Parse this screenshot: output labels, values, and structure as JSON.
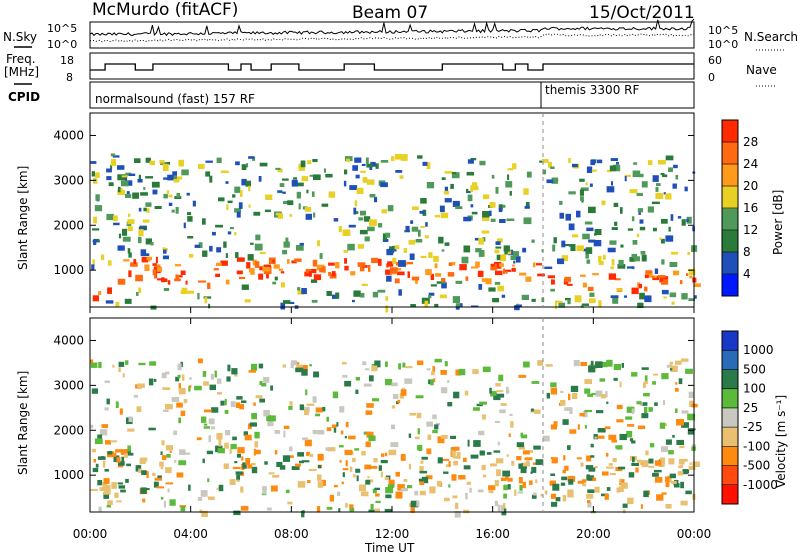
{
  "header": {
    "station": "McMurdo (fitACF)",
    "beam": "Beam 07",
    "date": "15/Oct/2011"
  },
  "noise_panel": {
    "left_label": "N.Sky",
    "right_label": "N.Search",
    "left_ticks": [
      "10^5",
      "10^0"
    ],
    "right_ticks": [
      "10^5",
      "10^0"
    ]
  },
  "freq_panel": {
    "left_label_line1": "Freq.",
    "left_label_line2": "[MHz]",
    "left_ticks": [
      "18",
      "8"
    ],
    "right_label": "Nave",
    "right_ticks": [
      "60",
      "0"
    ]
  },
  "cpid_panel": {
    "label": "CPID",
    "modes": [
      {
        "text": "normalsound (fast) 157 RF",
        "start_hour": 0
      },
      {
        "text": "themis 3300 RF",
        "start_hour": 18.0
      }
    ]
  },
  "time_axis": {
    "label": "Time UT",
    "ticks": [
      "00:00",
      "04:00",
      "08:00",
      "12:00",
      "16:00",
      "20:00",
      "00:00"
    ]
  },
  "power_panel": {
    "ylabel": "Slant Range [km]",
    "yticks": [
      "1000",
      "2000",
      "3000",
      "4000"
    ],
    "colorbar_label": "Power [dB]",
    "colorbar_ticks": [
      "4",
      "8",
      "12",
      "16",
      "20",
      "24",
      "28"
    ],
    "colors": [
      "#0018ff",
      "#1f4fb8",
      "#2a7a3a",
      "#4f9a5a",
      "#e8d024",
      "#ff9a1a",
      "#ff6a10",
      "#ff2a00"
    ]
  },
  "velocity_panel": {
    "ylabel": "Slant Range [km]",
    "yticks": [
      "1000",
      "2000",
      "3000",
      "4000"
    ],
    "colorbar_label": "Velocity [m s⁻¹]",
    "colorbar_ticks": [
      "1000",
      "500",
      "100",
      "25",
      "-25",
      "-100",
      "-500",
      "-1000"
    ],
    "colors": [
      "#1a38c8",
      "#2a6ab8",
      "#2a7a4a",
      "#5cba3a",
      "#c8c8c0",
      "#e8c070",
      "#ff8a10",
      "#ff4a10",
      "#ff1000"
    ]
  },
  "chart_data": {
    "type": "heatmap",
    "x_range_hours": [
      0,
      24
    ],
    "y_range_km": [
      180,
      4500
    ],
    "power_bands": [
      {
        "t0": 0.0,
        "t1": 1.0,
        "r0": 400,
        "r1": 900,
        "level": "high"
      },
      {
        "t0": 1.0,
        "t1": 6.0,
        "r0": 700,
        "r1": 1300,
        "level": "high"
      },
      {
        "t0": 6.0,
        "t1": 12.0,
        "r0": 900,
        "r1": 1300,
        "level": "high"
      },
      {
        "t0": 12.0,
        "t1": 18.0,
        "r0": 800,
        "r1": 1200,
        "level": "high"
      },
      {
        "t0": 18.0,
        "t1": 24.0,
        "r0": 600,
        "r1": 1000,
        "level": "high"
      }
    ],
    "velocity_bands": [
      {
        "t0": 0.0,
        "t1": 3.0,
        "r0": 600,
        "r1": 1600,
        "level": "positive"
      },
      {
        "t0": 5.5,
        "t1": 17.8,
        "r0": 800,
        "r1": 1600,
        "level": "negative"
      },
      {
        "t0": 18.0,
        "t1": 24.0,
        "r0": 500,
        "r1": 1500,
        "level": "positive"
      }
    ]
  }
}
